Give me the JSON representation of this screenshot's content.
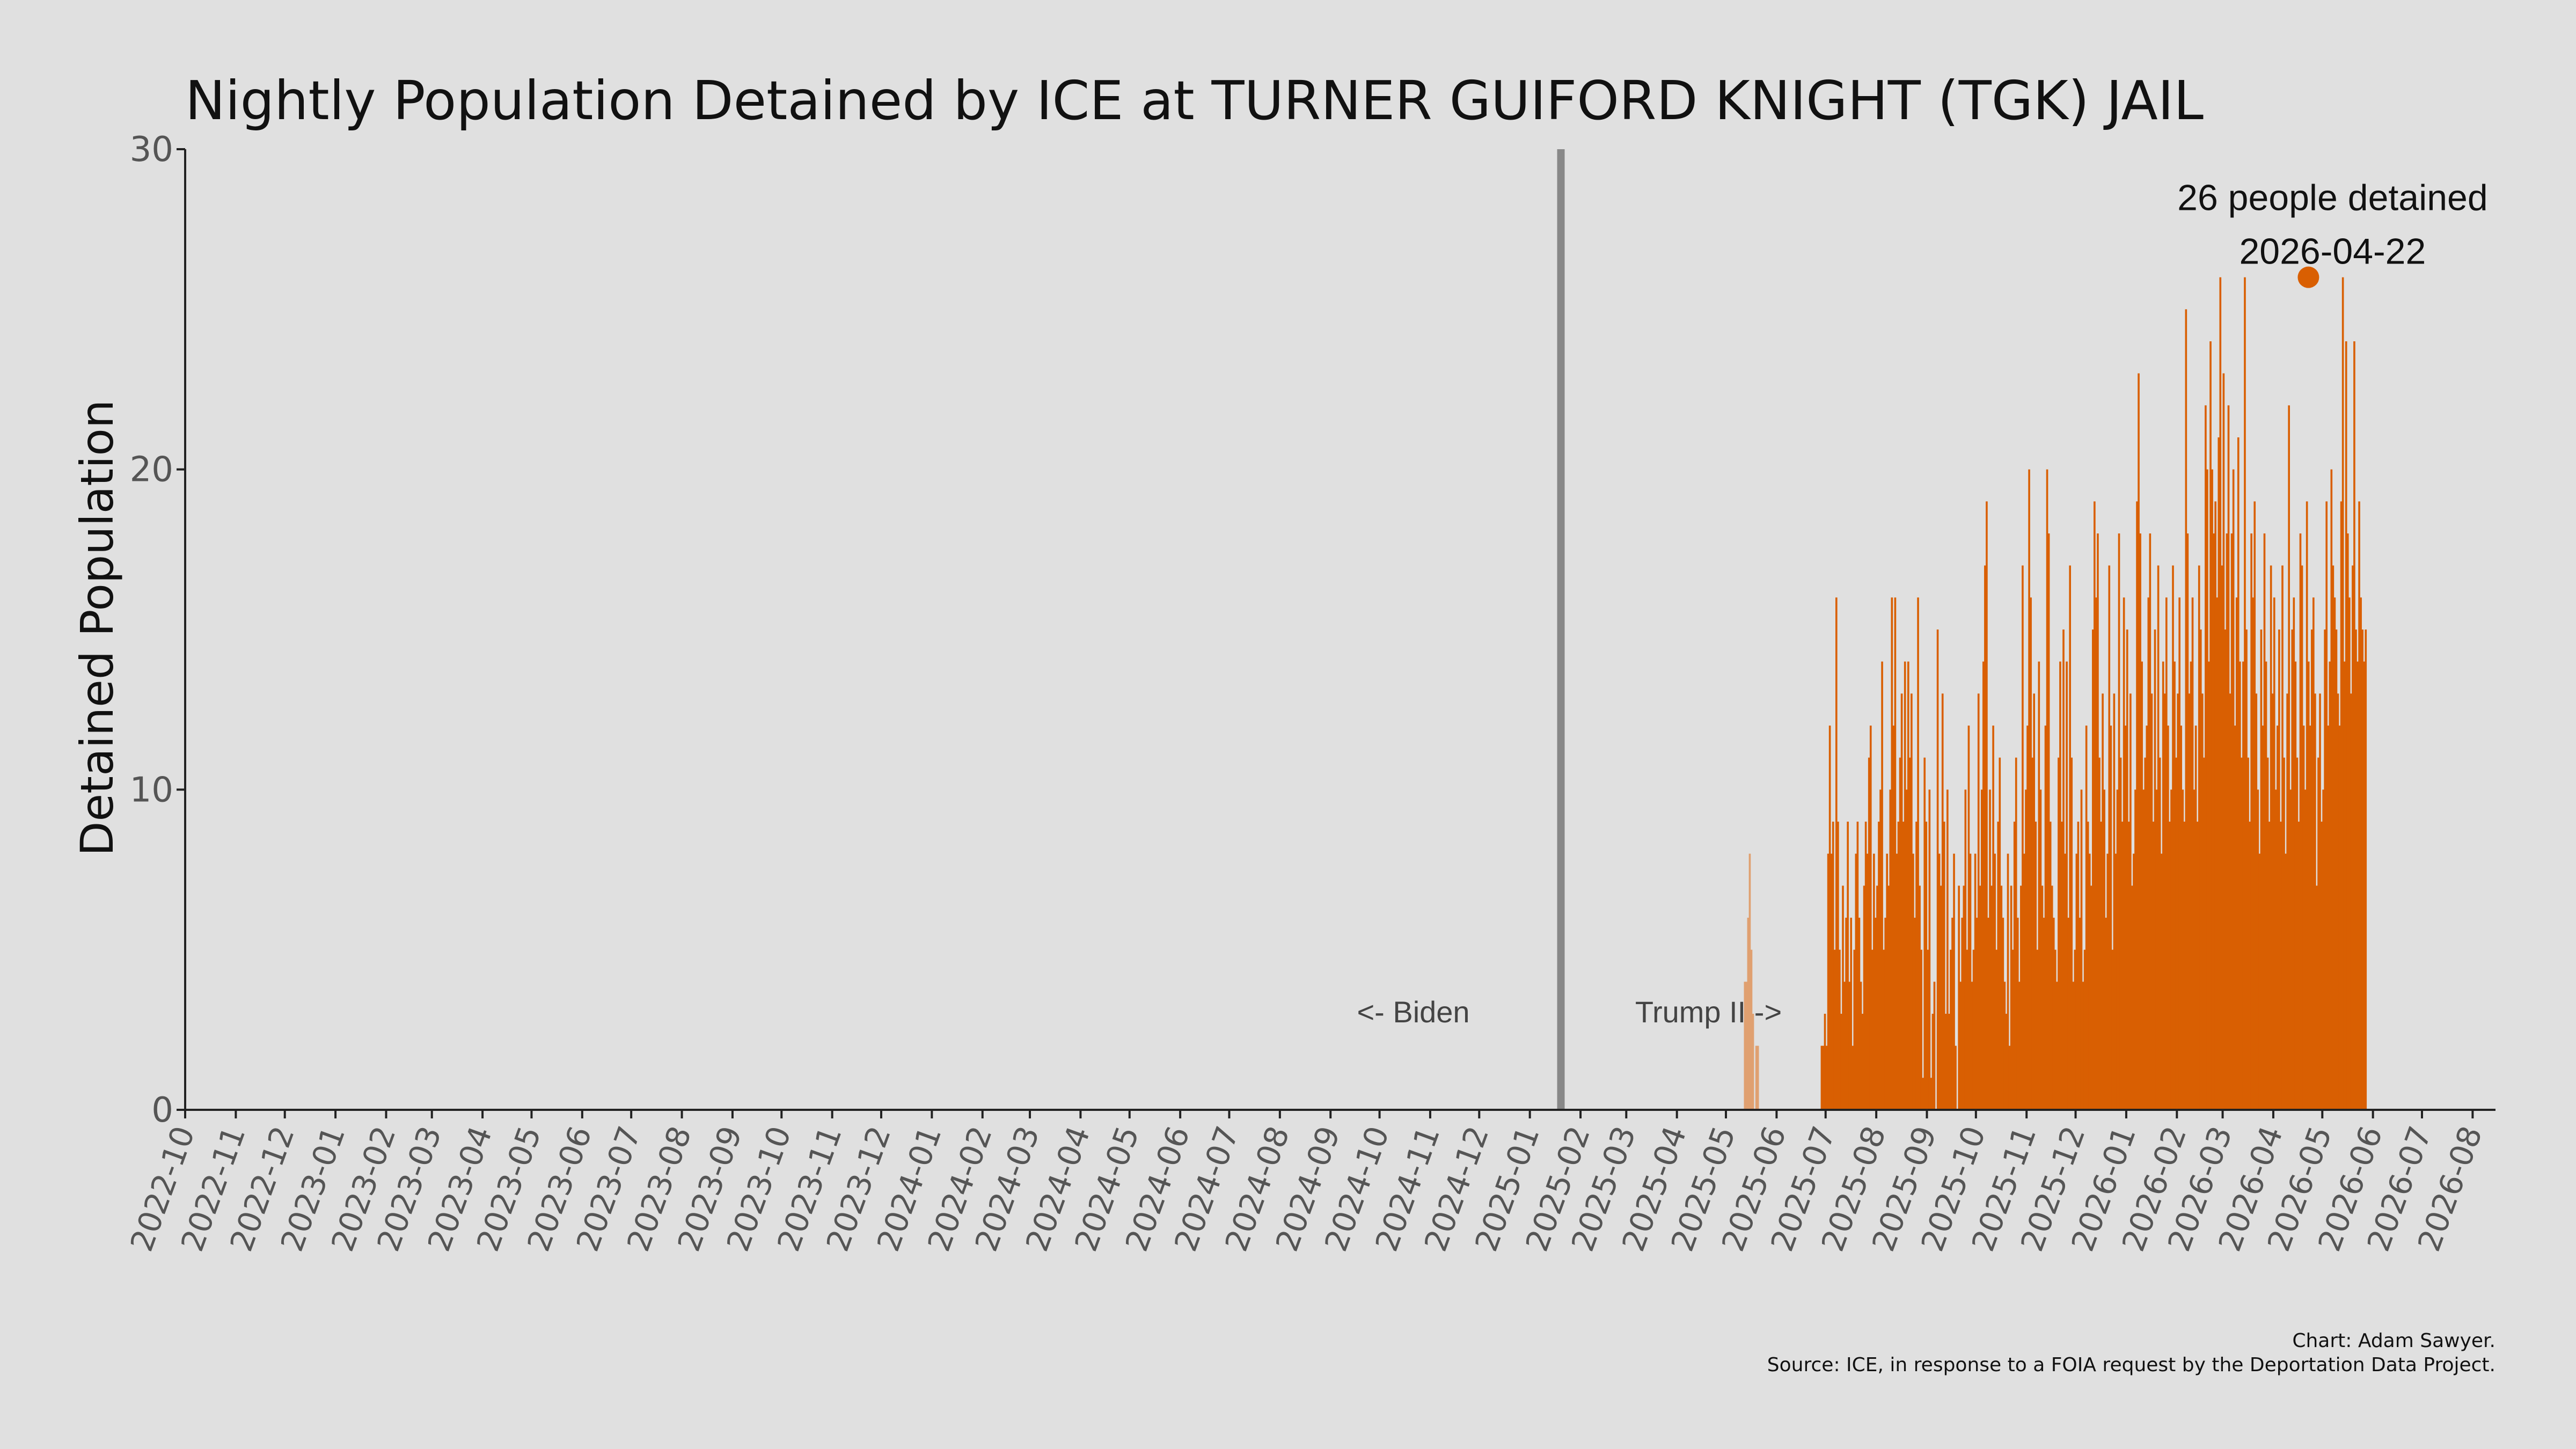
{
  "chart_data": {
    "type": "bar",
    "title": "Nightly Population Detained by ICE at TURNER GUIFORD KNIGHT (TGK) JAIL",
    "ylabel": "Detained Population",
    "xlabel": "",
    "ylim": [
      0,
      30
    ],
    "yticks": [
      0,
      10,
      20,
      30
    ],
    "xlim": [
      "2022-10-01",
      "2026-08-15"
    ],
    "xticks": [
      "2022-10",
      "2022-11",
      "2022-12",
      "2023-01",
      "2023-02",
      "2023-03",
      "2023-04",
      "2023-05",
      "2023-06",
      "2023-07",
      "2023-08",
      "2023-09",
      "2023-10",
      "2023-11",
      "2023-12",
      "2024-01",
      "2024-02",
      "2024-03",
      "2024-04",
      "2024-05",
      "2024-06",
      "2024-07",
      "2024-08",
      "2024-09",
      "2024-10",
      "2024-11",
      "2024-12",
      "2025-01",
      "2025-02",
      "2025-03",
      "2025-04",
      "2025-05",
      "2025-06",
      "2025-07",
      "2025-08",
      "2025-09",
      "2025-10",
      "2025-11",
      "2025-12",
      "2026-01",
      "2026-02",
      "2026-03",
      "2026-04",
      "2026-05",
      "2026-06",
      "2026-07",
      "2026-08"
    ],
    "grid": false,
    "colors": {
      "bar": "#d95f02",
      "bar_light": "#e0a070",
      "divider": "#888888",
      "background": "#e0e0e0"
    },
    "divider_date": "2025-01-20",
    "era_labels": {
      "left": "<- Biden",
      "right": "Trump II ->"
    },
    "peak": {
      "date": "2026-04-22",
      "value": 26,
      "label_line1": "26 people detained",
      "label_line2": "2026-04-22"
    },
    "series": [
      {
        "start_date": "2025-05-12",
        "color": "#e0a070",
        "values": [
          4,
          4,
          6,
          8,
          5,
          3,
          0,
          2,
          2,
          0
        ]
      },
      {
        "start_date": "2025-06-28",
        "color": "#d95f02",
        "values": [
          2,
          2,
          3,
          2,
          8,
          12,
          8,
          9,
          5,
          16,
          9,
          5,
          3,
          7,
          4,
          6,
          9,
          4,
          6,
          2,
          5,
          8,
          9,
          6,
          4,
          3,
          7,
          9,
          8,
          11,
          12,
          5,
          8,
          6,
          7,
          9,
          10,
          14,
          5,
          6,
          8,
          7,
          10,
          16,
          12,
          16,
          8,
          9,
          11,
          13,
          9,
          14,
          10,
          14,
          11,
          13,
          8,
          6,
          9,
          16,
          7,
          5,
          1,
          11,
          9,
          5,
          10,
          1,
          3,
          4,
          0,
          15,
          8,
          7,
          13,
          9,
          3,
          10,
          3,
          5,
          6,
          8,
          2,
          0,
          7,
          4,
          6,
          7,
          10,
          5,
          12,
          8,
          4,
          5,
          8,
          6,
          13,
          7,
          10,
          14,
          17,
          19,
          6,
          10,
          7,
          12,
          8,
          5,
          9,
          11,
          7,
          6,
          4,
          3,
          8,
          2,
          7,
          5,
          9,
          11,
          6,
          4,
          7,
          17,
          8,
          10,
          12,
          20,
          16,
          11,
          13,
          9,
          5,
          14,
          10,
          7,
          6,
          12,
          20,
          18,
          9,
          7,
          6,
          5,
          4,
          11,
          14,
          9,
          15,
          8,
          14,
          6,
          17,
          11,
          4,
          5,
          8,
          9,
          6,
          10,
          4,
          5,
          12,
          9,
          8,
          7,
          15,
          19,
          16,
          18,
          11,
          9,
          13,
          10,
          6,
          8,
          17,
          12,
          5,
          13,
          8,
          10,
          18,
          11,
          9,
          16,
          12,
          15,
          9,
          13,
          7,
          8,
          10,
          19,
          23,
          18,
          14,
          10,
          11,
          12,
          16,
          18,
          13,
          9,
          15,
          10,
          17,
          11,
          8,
          14,
          13,
          16,
          12,
          9,
          10,
          17,
          14,
          11,
          13,
          16,
          12,
          10,
          9,
          25,
          18,
          13,
          14,
          16,
          10,
          12,
          9,
          17,
          15,
          13,
          11,
          22,
          20,
          14,
          24,
          20,
          18,
          19,
          16,
          21,
          26,
          17,
          23,
          15,
          18,
          22,
          13,
          18,
          20,
          12,
          16,
          21,
          14,
          11,
          14,
          26,
          15,
          11,
          9,
          18,
          16,
          19,
          13,
          10,
          8,
          15,
          12,
          18,
          14,
          11,
          9,
          17,
          13,
          16,
          10,
          12,
          15,
          9,
          17,
          11,
          8,
          13,
          22,
          10,
          15,
          16,
          14,
          11,
          9,
          18,
          17,
          12,
          10,
          19,
          14,
          12,
          15,
          16,
          13,
          7,
          11,
          13,
          9,
          10,
          15,
          19,
          12,
          14,
          20,
          17,
          16,
          15,
          13,
          12,
          19,
          26,
          14,
          24,
          18,
          16,
          13,
          17,
          24,
          15,
          14,
          19,
          16,
          15,
          14,
          15
        ]
      }
    ],
    "source": "Source: ICE, in response to a FOIA request by the Deportation Data Project.",
    "credit": "Chart: Adam Sawyer."
  }
}
